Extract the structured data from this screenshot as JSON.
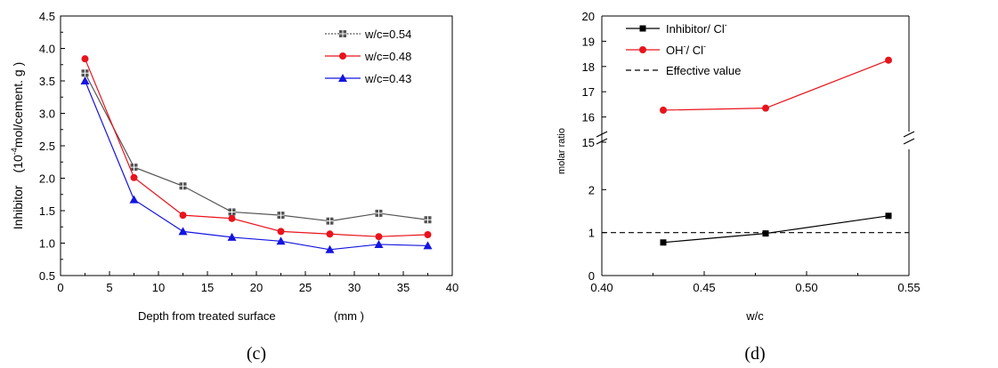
{
  "chart_data": [
    {
      "panel_label": "(c)",
      "type": "line",
      "xlabel": "Depth from treated surface",
      "xlabel_unit": "(mm )",
      "ylabel": "Inhibitor",
      "ylabel_unit_parts": [
        "(10",
        "-4",
        "mol/cement. g )"
      ],
      "xlim": [
        0,
        40
      ],
      "ylim": [
        0.5,
        4.5
      ],
      "xticks": [
        "0",
        "5",
        "10",
        "15",
        "20",
        "25",
        "30",
        "35",
        "40"
      ],
      "yticks": [
        "0.5",
        "1.0",
        "1.5",
        "2.0",
        "2.5",
        "3.0",
        "3.5",
        "4.0",
        "4.5"
      ],
      "grid": false,
      "legend_position": "top-right",
      "x": [
        2.5,
        7.5,
        12.5,
        17.5,
        22.5,
        27.5,
        32.5,
        37.5
      ],
      "series": [
        {
          "name": "w/c=0.54",
          "color": "#555555",
          "marker": "square-cross",
          "line": "dotted",
          "values": [
            3.62,
            2.17,
            1.88,
            1.48,
            1.43,
            1.34,
            1.46,
            1.36
          ]
        },
        {
          "name": "w/c=0.48",
          "color": "#e8141c",
          "marker": "circle",
          "line": "solid",
          "values": [
            3.84,
            2.01,
            1.43,
            1.38,
            1.18,
            1.14,
            1.1,
            1.13
          ]
        },
        {
          "name": "w/c=0.43",
          "color": "#1414e0",
          "marker": "triangle",
          "line": "solid",
          "values": [
            3.5,
            1.67,
            1.18,
            1.09,
            1.03,
            0.9,
            0.98,
            0.96
          ]
        }
      ]
    },
    {
      "panel_label": "(d)",
      "type": "line",
      "xlabel": "w/c",
      "ylabel": "molar ratio",
      "xlim": [
        0.4,
        0.55
      ],
      "ylim_lower": [
        0,
        3
      ],
      "ylim_upper": [
        15,
        20
      ],
      "axis_break": true,
      "xticks": [
        "0.40",
        "0.45",
        "0.50",
        "0.55"
      ],
      "yticks_lower": [
        "0",
        "1",
        "2"
      ],
      "yticks_upper": [
        "15",
        "16",
        "17",
        "18",
        "19",
        "20"
      ],
      "grid": false,
      "legend_position": "top-left",
      "x": [
        0.43,
        0.48,
        0.54
      ],
      "series": [
        {
          "name_parts": [
            "Inhibitor/ Cl",
            "-"
          ],
          "color": "#000000",
          "marker": "square",
          "line": "solid",
          "values": [
            0.77,
            0.98,
            1.39
          ]
        },
        {
          "name_parts": [
            "OH",
            "-",
            "/ Cl",
            "-"
          ],
          "color": "#e8141c",
          "marker": "circle",
          "line": "solid",
          "values": [
            16.27,
            16.35,
            18.25
          ]
        }
      ],
      "reference_line": {
        "name": "Effective value",
        "value": 1,
        "style": "dashed",
        "color": "#000000"
      }
    }
  ]
}
